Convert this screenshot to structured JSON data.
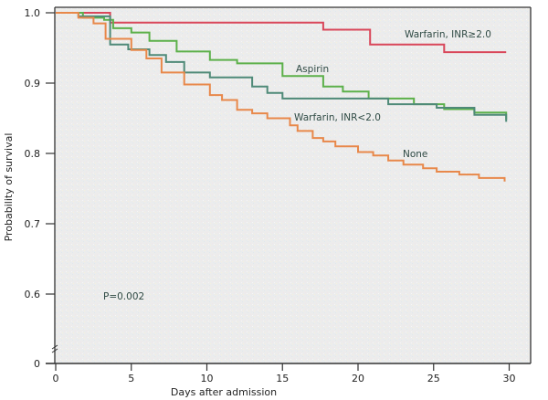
{
  "chart_data": {
    "type": "line",
    "subtype": "kaplan-meier-step",
    "title": "",
    "xlabel": "Days after admission",
    "ylabel": "Probability of survival",
    "xlim": [
      0,
      31
    ],
    "ylim": [
      0.55,
      1.0
    ],
    "axis_break": true,
    "x_ticks": [
      0,
      5,
      10,
      15,
      20,
      25,
      30
    ],
    "x_tick_labels": [
      "0",
      "5",
      "10",
      "15",
      "20",
      "25",
      "30"
    ],
    "y_ticks": [
      0,
      0.6,
      0.7,
      0.8,
      0.9,
      1.0
    ],
    "y_tick_labels": [
      "0",
      "0.6",
      "0.7",
      "0.8",
      "0.9",
      "1.0"
    ],
    "grid": false,
    "annotation": "P=0.002",
    "series": [
      {
        "name": "Warfarin, INR≥2.0",
        "color": "#d9475a",
        "x": [
          0,
          3.6,
          3.6,
          17.7,
          17.7,
          20.8,
          20.8,
          25.7,
          25.7,
          29.8
        ],
        "y": [
          1.0,
          1.0,
          0.986,
          0.986,
          0.976,
          0.976,
          0.955,
          0.955,
          0.944,
          0.944
        ]
      },
      {
        "name": "Aspirin",
        "color": "#5cb04a",
        "x": [
          0,
          1.8,
          1.8,
          3.2,
          3.2,
          3.8,
          3.8,
          5.0,
          5.0,
          6.2,
          6.2,
          8.0,
          8.0,
          10.2,
          10.2,
          12.0,
          12.0,
          15.0,
          15.0,
          17.7,
          17.7,
          19.0,
          19.0,
          20.7,
          20.7,
          23.7,
          23.7,
          25.7,
          25.7,
          27.7,
          27.7,
          29.8,
          29.8
        ],
        "y": [
          1.0,
          1.0,
          0.993,
          0.993,
          0.99,
          0.99,
          0.978,
          0.978,
          0.972,
          0.972,
          0.96,
          0.96,
          0.945,
          0.945,
          0.933,
          0.933,
          0.928,
          0.928,
          0.91,
          0.91,
          0.895,
          0.895,
          0.888,
          0.888,
          0.878,
          0.878,
          0.87,
          0.87,
          0.863,
          0.863,
          0.858,
          0.858,
          0.848
        ]
      },
      {
        "name": "Warfarin, INR<2.0",
        "color": "#4f8a78",
        "x": [
          0,
          1.5,
          1.5,
          3.6,
          3.6,
          4.8,
          4.8,
          6.2,
          6.2,
          7.3,
          7.3,
          8.5,
          8.5,
          10.2,
          10.2,
          13.0,
          13.0,
          14.0,
          14.0,
          15.0,
          15.0,
          19.0,
          19.0,
          22.0,
          22.0,
          25.2,
          25.2,
          27.7,
          27.7,
          29.8,
          29.8
        ],
        "y": [
          1.0,
          1.0,
          0.995,
          0.995,
          0.955,
          0.955,
          0.948,
          0.948,
          0.94,
          0.94,
          0.93,
          0.93,
          0.915,
          0.915,
          0.908,
          0.908,
          0.895,
          0.895,
          0.886,
          0.886,
          0.878,
          0.878,
          0.878,
          0.878,
          0.87,
          0.87,
          0.865,
          0.865,
          0.855,
          0.855,
          0.845
        ]
      },
      {
        "name": "None",
        "color": "#e8884a",
        "x": [
          0,
          1.5,
          1.5,
          2.5,
          2.5,
          3.3,
          3.3,
          5.0,
          5.0,
          6.0,
          6.0,
          7.0,
          7.0,
          8.5,
          8.5,
          10.2,
          10.2,
          11.0,
          11.0,
          12.0,
          12.0,
          13.0,
          13.0,
          14.0,
          14.0,
          15.5,
          15.5,
          16.0,
          16.0,
          17.0,
          17.0,
          17.7,
          17.7,
          18.5,
          18.5,
          20.0,
          20.0,
          21.0,
          21.0,
          22.0,
          22.0,
          23.0,
          23.0,
          24.3,
          24.3,
          25.2,
          25.2,
          26.7,
          26.7,
          28.0,
          28.0,
          29.7,
          29.7
        ],
        "y": [
          1.0,
          1.0,
          0.993,
          0.993,
          0.985,
          0.985,
          0.963,
          0.963,
          0.947,
          0.947,
          0.935,
          0.935,
          0.915,
          0.915,
          0.898,
          0.898,
          0.883,
          0.883,
          0.876,
          0.876,
          0.862,
          0.862,
          0.857,
          0.857,
          0.85,
          0.85,
          0.84,
          0.84,
          0.832,
          0.832,
          0.822,
          0.822,
          0.817,
          0.817,
          0.81,
          0.81,
          0.802,
          0.802,
          0.797,
          0.797,
          0.79,
          0.79,
          0.784,
          0.784,
          0.779,
          0.779,
          0.774,
          0.774,
          0.77,
          0.77,
          0.765,
          0.765,
          0.76
        ]
      }
    ]
  }
}
